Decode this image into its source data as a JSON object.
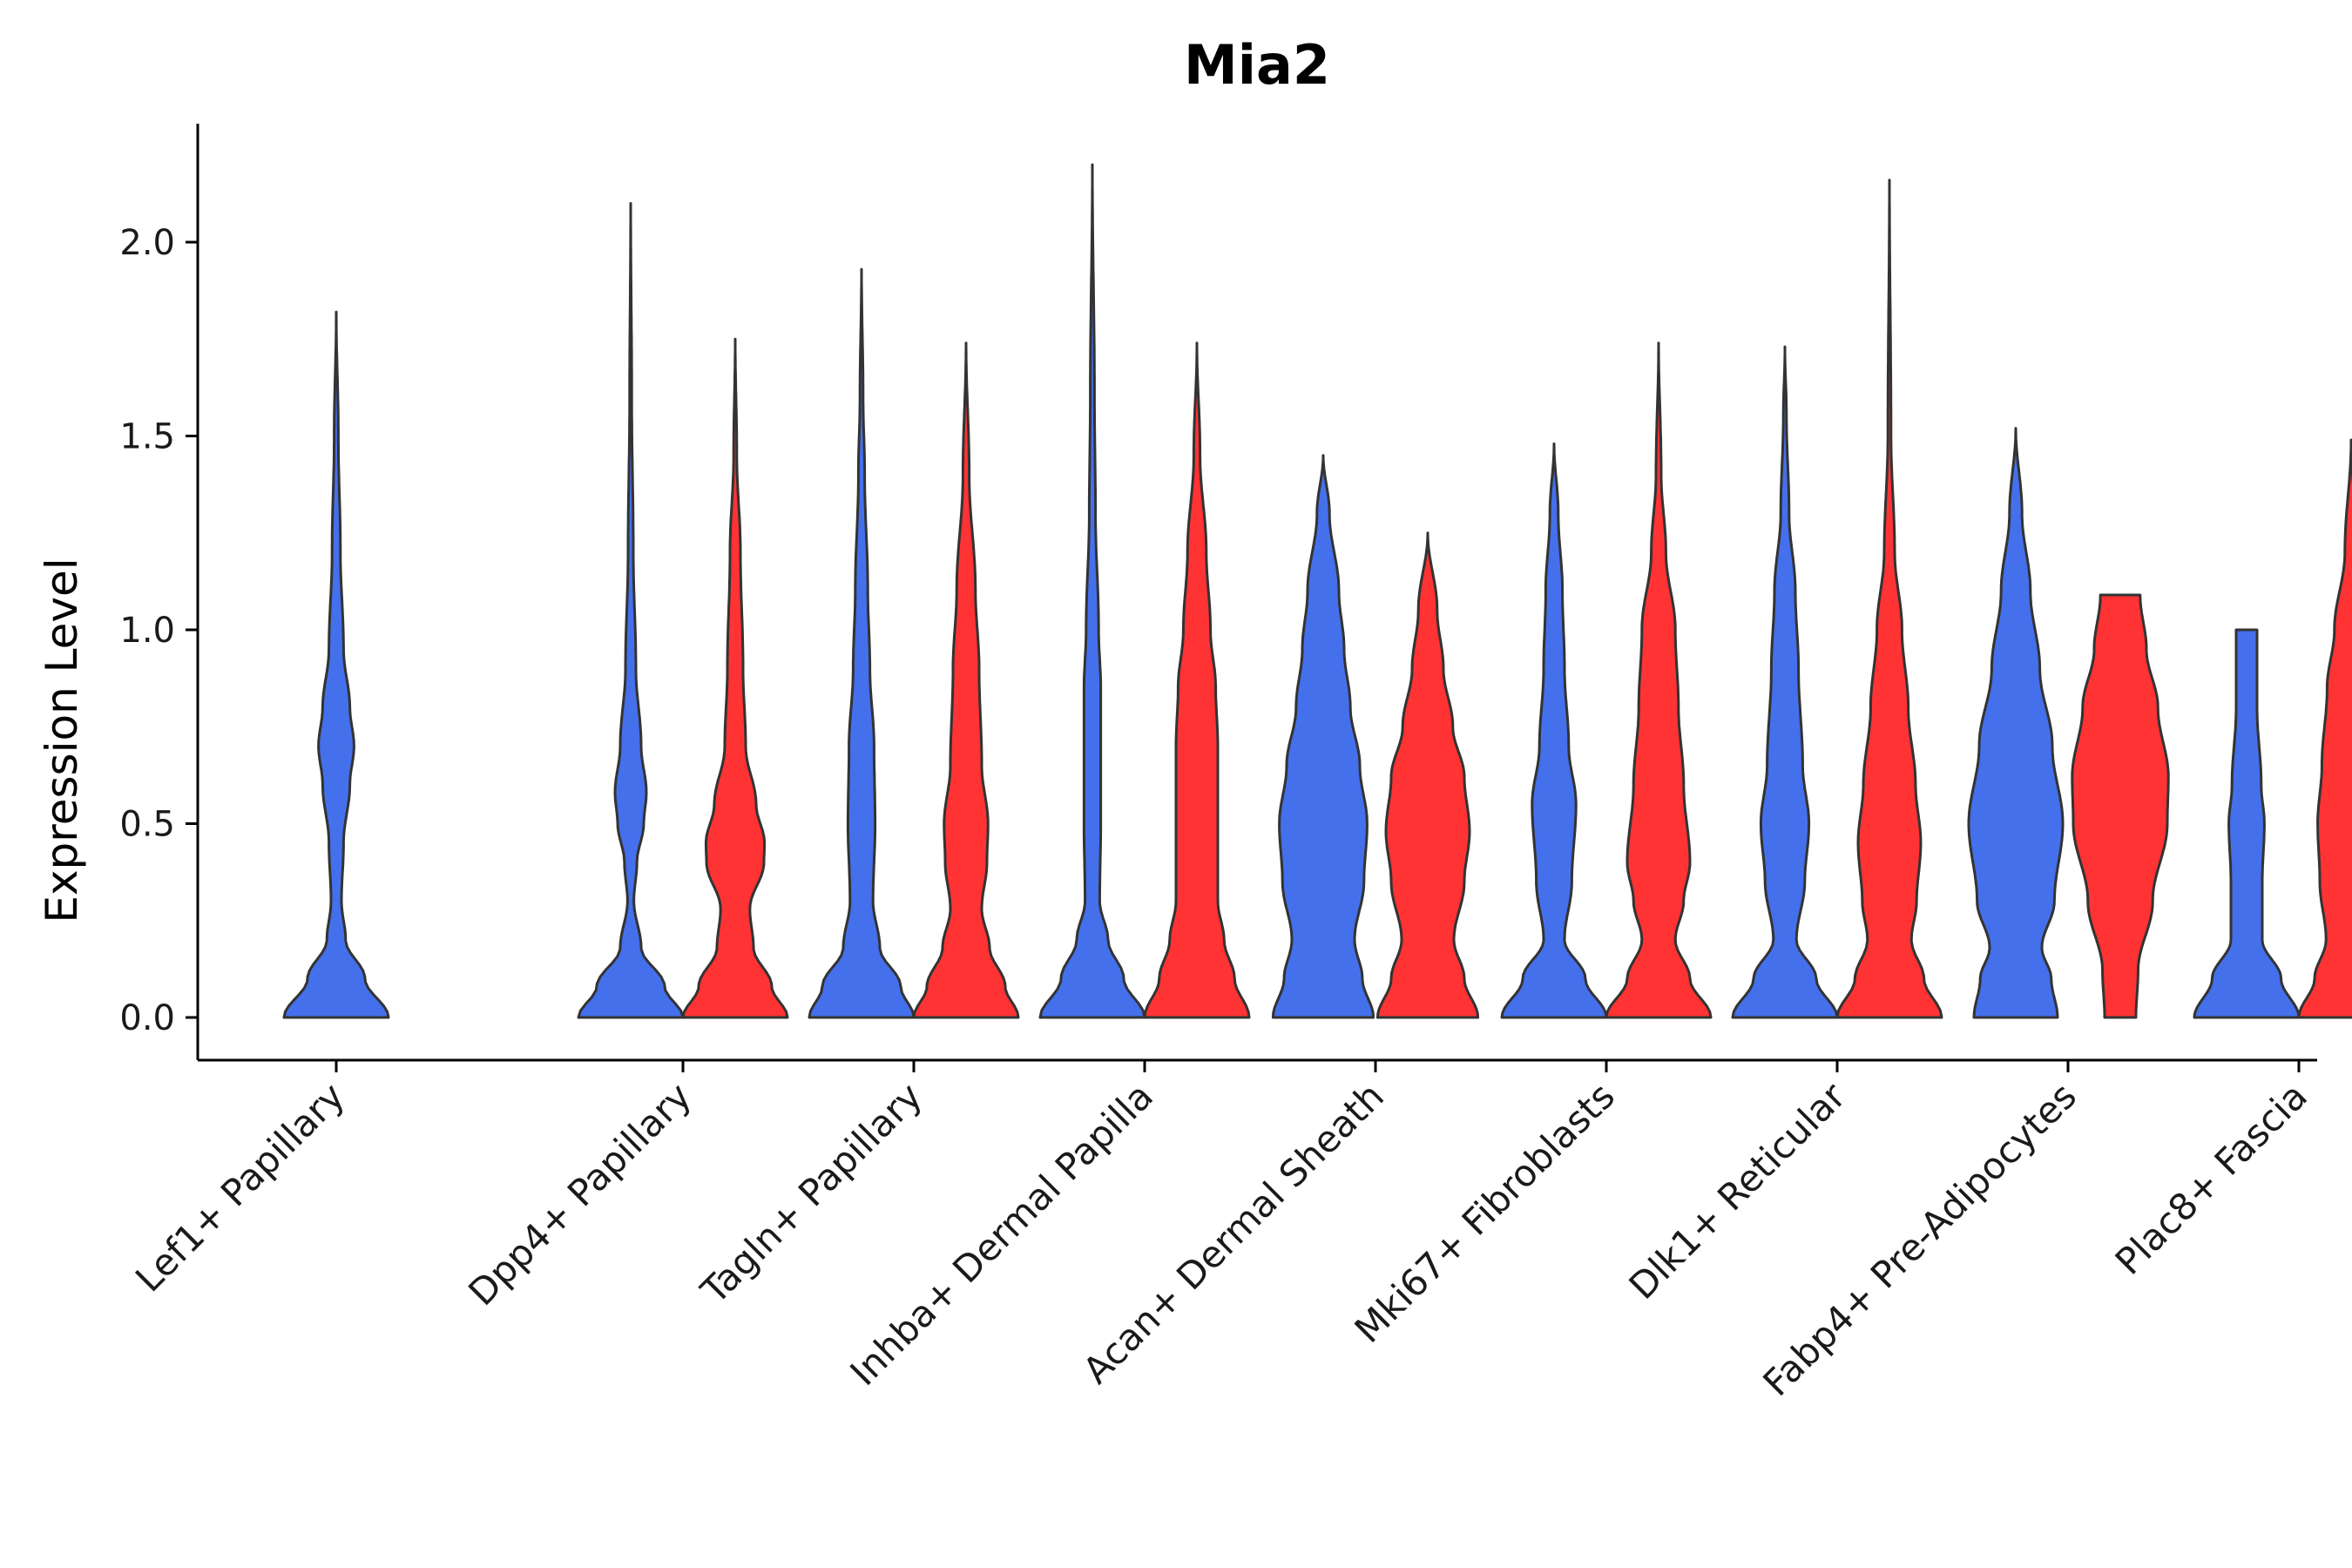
{
  "chart_data": {
    "type": "violin",
    "title": "Mia2",
    "xlabel": "",
    "ylabel": "Expression Level",
    "ylim": [
      -0.11,
      2.3
    ],
    "yticks": [
      0.0,
      0.5,
      1.0,
      1.5,
      2.0
    ],
    "ytick_labels": [
      "0.0",
      "0.5",
      "1.0",
      "1.5",
      "2.0"
    ],
    "categories": [
      "Lef1+ Papillary",
      "Dpp4+ Papillary",
      "Tagln+ Papillary",
      "Inhba+ Dermal Papilla",
      "Acan+ Dermal Sheath",
      "Mki67+ Fibroblasts",
      "Dlk1+ Reticular",
      "Fabp4+ Pre-Adipocytes",
      "Plac8+ Fascia"
    ],
    "series_colors": {
      "group1": "#4470EC",
      "group2": "#FF3333"
    },
    "violins": [
      {
        "category": 0,
        "group": "group1",
        "max": 1.82,
        "profile": [
          [
            0,
            1.0
          ],
          [
            0.1,
            0.55
          ],
          [
            0.2,
            0.18
          ],
          [
            0.3,
            0.1
          ],
          [
            0.45,
            0.14
          ],
          [
            0.6,
            0.26
          ],
          [
            0.7,
            0.34
          ],
          [
            0.8,
            0.26
          ],
          [
            0.95,
            0.14
          ],
          [
            1.2,
            0.08
          ],
          [
            1.5,
            0.04
          ],
          [
            1.82,
            0.0
          ]
        ]
      },
      {
        "category": 1,
        "group": "group1",
        "max": 2.1,
        "profile": [
          [
            0,
            1.0
          ],
          [
            0.08,
            0.65
          ],
          [
            0.18,
            0.2
          ],
          [
            0.3,
            0.06
          ],
          [
            0.4,
            0.12
          ],
          [
            0.5,
            0.25
          ],
          [
            0.58,
            0.3
          ],
          [
            0.7,
            0.2
          ],
          [
            0.9,
            0.1
          ],
          [
            1.2,
            0.05
          ],
          [
            1.6,
            0.02
          ],
          [
            2.1,
            0.0
          ]
        ]
      },
      {
        "category": 1,
        "group": "group2",
        "max": 1.75,
        "profile": [
          [
            0,
            1.0
          ],
          [
            0.08,
            0.7
          ],
          [
            0.18,
            0.35
          ],
          [
            0.28,
            0.28
          ],
          [
            0.4,
            0.55
          ],
          [
            0.45,
            0.56
          ],
          [
            0.55,
            0.4
          ],
          [
            0.7,
            0.2
          ],
          [
            0.9,
            0.15
          ],
          [
            1.2,
            0.1
          ],
          [
            1.45,
            0.03
          ],
          [
            1.75,
            0.0
          ]
        ]
      },
      {
        "category": 2,
        "group": "group1",
        "max": 1.93,
        "profile": [
          [
            0,
            1.0
          ],
          [
            0.08,
            0.75
          ],
          [
            0.18,
            0.35
          ],
          [
            0.3,
            0.22
          ],
          [
            0.5,
            0.26
          ],
          [
            0.7,
            0.24
          ],
          [
            0.9,
            0.16
          ],
          [
            1.1,
            0.12
          ],
          [
            1.4,
            0.06
          ],
          [
            1.6,
            0.03
          ],
          [
            1.93,
            0.0
          ]
        ]
      },
      {
        "category": 2,
        "group": "group2",
        "max": 1.74,
        "profile": [
          [
            0,
            1.0
          ],
          [
            0.08,
            0.75
          ],
          [
            0.18,
            0.45
          ],
          [
            0.28,
            0.3
          ],
          [
            0.4,
            0.4
          ],
          [
            0.5,
            0.42
          ],
          [
            0.65,
            0.3
          ],
          [
            0.9,
            0.25
          ],
          [
            1.1,
            0.18
          ],
          [
            1.4,
            0.06
          ],
          [
            1.74,
            0.0
          ]
        ]
      },
      {
        "category": 3,
        "group": "group1",
        "max": 2.2,
        "profile": [
          [
            0,
            1.0
          ],
          [
            0.1,
            0.6
          ],
          [
            0.2,
            0.3
          ],
          [
            0.3,
            0.14
          ],
          [
            0.5,
            0.16
          ],
          [
            0.7,
            0.16
          ],
          [
            0.85,
            0.16
          ],
          [
            1.0,
            0.12
          ],
          [
            1.3,
            0.06
          ],
          [
            1.6,
            0.04
          ],
          [
            2.2,
            0.0
          ]
        ]
      },
      {
        "category": 3,
        "group": "group2",
        "max": 1.74,
        "profile": [
          [
            0,
            1.0
          ],
          [
            0.1,
            0.72
          ],
          [
            0.2,
            0.52
          ],
          [
            0.3,
            0.4
          ],
          [
            0.5,
            0.4
          ],
          [
            0.7,
            0.4
          ],
          [
            0.85,
            0.36
          ],
          [
            1.0,
            0.26
          ],
          [
            1.2,
            0.18
          ],
          [
            1.45,
            0.06
          ],
          [
            1.74,
            0.0
          ]
        ]
      },
      {
        "category": 4,
        "group": "group1",
        "max": 1.45,
        "profile": [
          [
            0,
            0.96
          ],
          [
            0.1,
            0.75
          ],
          [
            0.2,
            0.6
          ],
          [
            0.35,
            0.78
          ],
          [
            0.5,
            0.84
          ],
          [
            0.65,
            0.7
          ],
          [
            0.8,
            0.52
          ],
          [
            0.95,
            0.4
          ],
          [
            1.1,
            0.3
          ],
          [
            1.3,
            0.12
          ],
          [
            1.45,
            0.0
          ]
        ]
      },
      {
        "category": 4,
        "group": "group2",
        "max": 1.25,
        "profile": [
          [
            0,
            0.96
          ],
          [
            0.1,
            0.7
          ],
          [
            0.2,
            0.5
          ],
          [
            0.35,
            0.7
          ],
          [
            0.48,
            0.8
          ],
          [
            0.62,
            0.7
          ],
          [
            0.75,
            0.48
          ],
          [
            0.9,
            0.3
          ],
          [
            1.05,
            0.18
          ],
          [
            1.25,
            0.0
          ]
        ]
      },
      {
        "category": 5,
        "group": "group1",
        "max": 1.48,
        "profile": [
          [
            0,
            1.0
          ],
          [
            0.1,
            0.6
          ],
          [
            0.2,
            0.2
          ],
          [
            0.35,
            0.34
          ],
          [
            0.55,
            0.42
          ],
          [
            0.7,
            0.28
          ],
          [
            0.9,
            0.2
          ],
          [
            1.1,
            0.16
          ],
          [
            1.3,
            0.08
          ],
          [
            1.48,
            0.0
          ]
        ]
      },
      {
        "category": 5,
        "group": "group2",
        "max": 1.74,
        "profile": [
          [
            0,
            1.0
          ],
          [
            0.1,
            0.6
          ],
          [
            0.2,
            0.32
          ],
          [
            0.3,
            0.48
          ],
          [
            0.4,
            0.6
          ],
          [
            0.6,
            0.48
          ],
          [
            0.8,
            0.38
          ],
          [
            1.0,
            0.32
          ],
          [
            1.2,
            0.14
          ],
          [
            1.4,
            0.05
          ],
          [
            1.74,
            0.0
          ]
        ]
      },
      {
        "category": 6,
        "group": "group1",
        "max": 1.73,
        "profile": [
          [
            0,
            1.0
          ],
          [
            0.1,
            0.6
          ],
          [
            0.2,
            0.22
          ],
          [
            0.35,
            0.38
          ],
          [
            0.5,
            0.46
          ],
          [
            0.65,
            0.34
          ],
          [
            0.9,
            0.26
          ],
          [
            1.1,
            0.2
          ],
          [
            1.3,
            0.08
          ],
          [
            1.55,
            0.03
          ],
          [
            1.73,
            0.0
          ]
        ]
      },
      {
        "category": 6,
        "group": "group2",
        "max": 2.16,
        "profile": [
          [
            0,
            1.0
          ],
          [
            0.1,
            0.66
          ],
          [
            0.2,
            0.42
          ],
          [
            0.3,
            0.52
          ],
          [
            0.45,
            0.6
          ],
          [
            0.6,
            0.5
          ],
          [
            0.8,
            0.36
          ],
          [
            1.0,
            0.24
          ],
          [
            1.2,
            0.1
          ],
          [
            1.5,
            0.03
          ],
          [
            2.16,
            0.0
          ]
        ]
      },
      {
        "category": 7,
        "group": "group1",
        "max": 1.52,
        "profile": [
          [
            0,
            0.8
          ],
          [
            0.1,
            0.68
          ],
          [
            0.18,
            0.5
          ],
          [
            0.3,
            0.74
          ],
          [
            0.5,
            0.9
          ],
          [
            0.7,
            0.7
          ],
          [
            0.9,
            0.46
          ],
          [
            1.1,
            0.28
          ],
          [
            1.3,
            0.12
          ],
          [
            1.52,
            0.0
          ]
        ]
      },
      {
        "category": 7,
        "group": "group2",
        "max": 1.09,
        "profile": [
          [
            0,
            0.3
          ],
          [
            0.12,
            0.34
          ],
          [
            0.3,
            0.62
          ],
          [
            0.5,
            0.9
          ],
          [
            0.62,
            0.92
          ],
          [
            0.8,
            0.72
          ],
          [
            0.95,
            0.5
          ],
          [
            1.09,
            0.38
          ]
        ]
      },
      {
        "category": 8,
        "group": "group1",
        "max": 1.0,
        "profile": [
          [
            0,
            1.0
          ],
          [
            0.1,
            0.66
          ],
          [
            0.2,
            0.3
          ],
          [
            0.35,
            0.3
          ],
          [
            0.5,
            0.34
          ],
          [
            0.6,
            0.28
          ],
          [
            0.8,
            0.2
          ],
          [
            1.0,
            0.2
          ]
        ]
      },
      {
        "category": 8,
        "group": "group2",
        "max": 1.49,
        "profile": [
          [
            0,
            1.0
          ],
          [
            0.1,
            0.7
          ],
          [
            0.2,
            0.48
          ],
          [
            0.35,
            0.6
          ],
          [
            0.5,
            0.64
          ],
          [
            0.65,
            0.56
          ],
          [
            0.85,
            0.46
          ],
          [
            1.0,
            0.32
          ],
          [
            1.2,
            0.12
          ],
          [
            1.49,
            0.0
          ]
        ]
      }
    ]
  }
}
